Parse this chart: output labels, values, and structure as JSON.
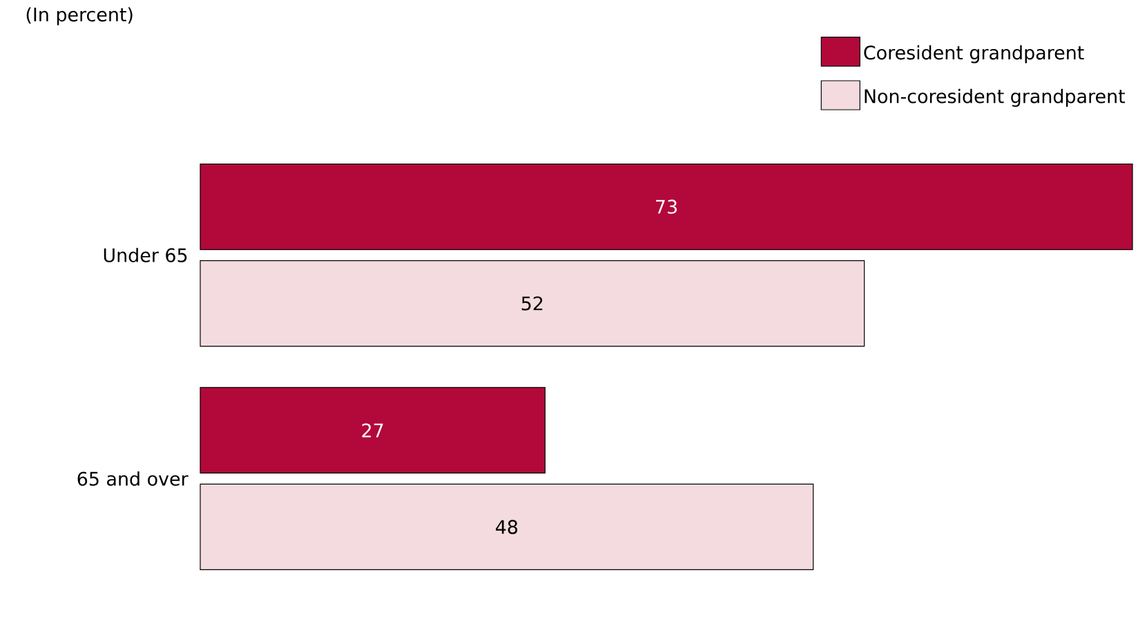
{
  "chart_data": {
    "type": "bar",
    "orientation": "horizontal",
    "subtitle": "(In percent)",
    "categories": [
      "Under 65",
      "65 and over"
    ],
    "data_labels": true,
    "legend": "top right",
    "series": [
      {
        "name": "Coresident grandparent",
        "color": "#b2083a",
        "values": [
          73,
          27
        ]
      },
      {
        "name": "Non-coresident grandparent",
        "color": "#f4dbe0",
        "values": [
          52,
          48
        ]
      }
    ]
  }
}
